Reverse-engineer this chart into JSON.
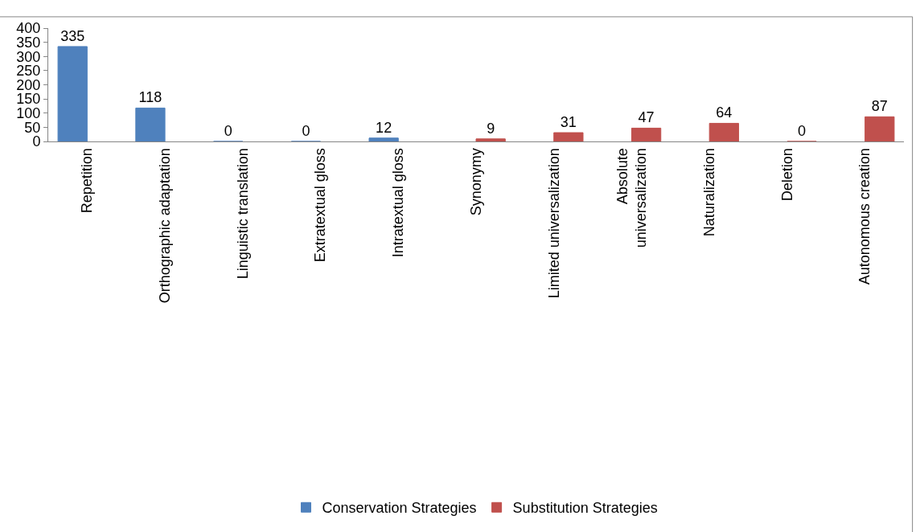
{
  "chart_data": {
    "type": "bar",
    "categories": [
      "Repetition",
      "Orthographic adaptation",
      "Linguistic translation",
      "Extratextual gloss",
      "Intratextual gloss",
      "Synonymy",
      "Limited universalization",
      "Absolute\nuniversalization",
      "Naturalization",
      "Deletion",
      "Autonomous creation"
    ],
    "series": [
      {
        "name": "Conservation Strategies",
        "color": "#4f81bd",
        "values": [
          335,
          118,
          0,
          0,
          12,
          null,
          null,
          null,
          null,
          null,
          null
        ]
      },
      {
        "name": "Substitution Strategies",
        "color": "#c0504d",
        "values": [
          null,
          null,
          null,
          null,
          null,
          9,
          31,
          47,
          64,
          0,
          87
        ]
      }
    ],
    "ylim": [
      0,
      400
    ],
    "yticks": [
      0,
      50,
      100,
      150,
      200,
      250,
      300,
      350,
      400
    ],
    "data_labels": true,
    "legend": "bottom"
  }
}
